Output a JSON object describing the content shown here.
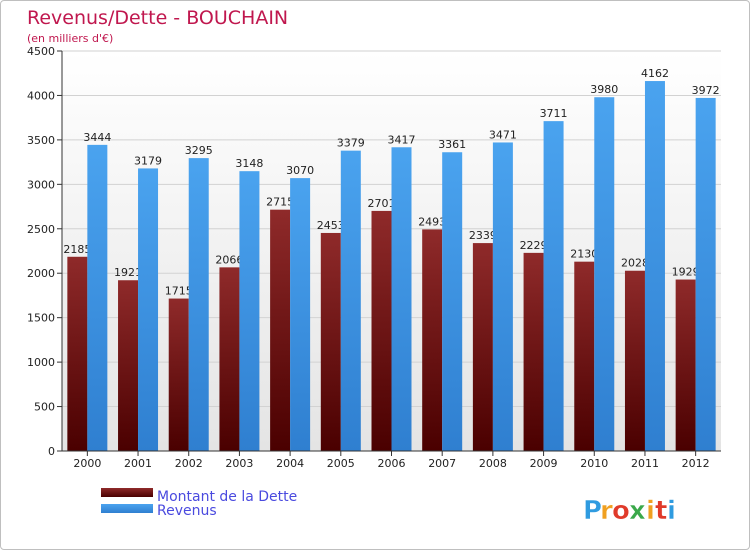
{
  "chart_data": {
    "type": "bar",
    "title": "Revenus/Dette - BOUCHAIN",
    "subtitle": "(en milliers d'€)",
    "categories": [
      "2000",
      "2001",
      "2002",
      "2003",
      "2004",
      "2005",
      "2006",
      "2007",
      "2008",
      "2009",
      "2010",
      "2011",
      "2012"
    ],
    "series": [
      {
        "name": "Montant de la Dette",
        "values": [
          2185,
          1921,
          1715,
          2066,
          2715,
          2453,
          2701,
          2493,
          2339,
          2229,
          2130,
          2028,
          1929
        ],
        "color": "#7a1a1a"
      },
      {
        "name": "Revenus",
        "values": [
          3444,
          3179,
          3295,
          3148,
          3070,
          3379,
          3417,
          3361,
          3471,
          3711,
          3980,
          4162,
          3972
        ],
        "color": "#3a8fe0"
      }
    ],
    "ylim": [
      0,
      4500
    ],
    "yticks": [
      0,
      500,
      1000,
      1500,
      2000,
      2500,
      3000,
      3500,
      4000,
      4500
    ],
    "grid": true,
    "legend_position": "bottom-left",
    "title_color": "#c0174e"
  },
  "branding": {
    "logo_text": "Proxiti"
  }
}
